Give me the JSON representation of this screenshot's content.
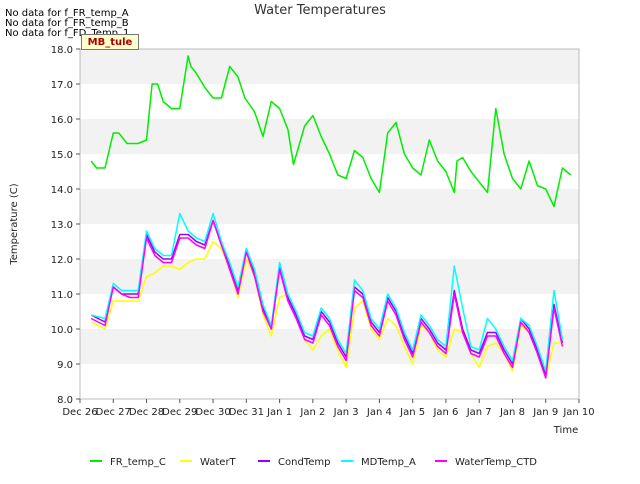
{
  "no_data_messages": [
    "No data for f_FR_temp_A",
    "No data for f_FR_temp_B",
    "No data for f_FD_Temp_1"
  ],
  "site_tag": "MB_tule",
  "chart_data": {
    "type": "line",
    "title": "Water Temperatures",
    "xlabel": "Time",
    "ylabel": "Temperature (C)",
    "xlim": [
      "2023-12-26",
      "2024-01-10"
    ],
    "ylim": [
      8.0,
      18.0
    ],
    "x_ticks": [
      "Dec 26",
      "Dec 27",
      "Dec 28",
      "Dec 29",
      "Dec 30",
      "Dec 31",
      "Jan 1",
      "Jan 2",
      "Jan 3",
      "Jan 4",
      "Jan 5",
      "Jan 6",
      "Jan 7",
      "Jan 8",
      "Jan 9",
      "Jan 10"
    ],
    "y_ticks": [
      "8.0",
      "9.0",
      "10.0",
      "11.0",
      "12.0",
      "13.0",
      "14.0",
      "15.0",
      "16.0",
      "17.0",
      "18.0"
    ],
    "grid": "horizontal bands",
    "legend_position": "bottom",
    "series": [
      {
        "name": "FR_temp_C",
        "color": "#00ee00",
        "x": [
          "2023-12-26 08:00",
          "2023-12-26 12:00",
          "2023-12-26 18:00",
          "2023-12-27 00:00",
          "2023-12-27 04:00",
          "2023-12-27 10:00",
          "2023-12-27 18:00",
          "2023-12-28 00:00",
          "2023-12-28 04:00",
          "2023-12-28 08:00",
          "2023-12-28 12:00",
          "2023-12-28 18:00",
          "2023-12-29 00:00",
          "2023-12-29 06:00",
          "2023-12-29 08:00",
          "2023-12-29 12:00",
          "2023-12-29 18:00",
          "2023-12-30 00:00",
          "2023-12-30 06:00",
          "2023-12-30 12:00",
          "2023-12-30 18:00",
          "2023-12-30 23:00",
          "2023-12-31 06:00",
          "2023-12-31 12:00",
          "2023-12-31 18:00",
          "2024-01-01 00:00",
          "2024-01-01 06:00",
          "2024-01-01 10:00",
          "2024-01-01 18:00",
          "2024-01-02 00:00",
          "2024-01-02 06:00",
          "2024-01-02 12:00",
          "2024-01-02 18:00",
          "2024-01-03 00:00",
          "2024-01-03 06:00",
          "2024-01-03 12:00",
          "2024-01-03 18:00",
          "2024-01-04 00:00",
          "2024-01-04 06:00",
          "2024-01-04 12:00",
          "2024-01-04 18:00",
          "2024-01-05 00:00",
          "2024-01-05 06:00",
          "2024-01-05 12:00",
          "2024-01-05 18:00",
          "2024-01-06 00:00",
          "2024-01-06 06:00",
          "2024-01-06 08:00",
          "2024-01-06 12:00",
          "2024-01-06 18:00",
          "2024-01-07 00:00",
          "2024-01-07 06:00",
          "2024-01-07 12:00",
          "2024-01-07 18:00",
          "2024-01-08 00:00",
          "2024-01-08 06:00",
          "2024-01-08 12:00",
          "2024-01-08 18:00",
          "2024-01-09 00:00",
          "2024-01-09 06:00",
          "2024-01-09 12:00",
          "2024-01-09 18:00"
        ],
        "y": [
          14.8,
          14.6,
          14.6,
          15.6,
          15.6,
          15.3,
          15.3,
          15.4,
          17.0,
          17.0,
          16.5,
          16.3,
          16.3,
          17.8,
          17.5,
          17.3,
          16.9,
          16.6,
          16.6,
          17.5,
          17.2,
          16.6,
          16.2,
          15.5,
          16.5,
          16.3,
          15.7,
          14.7,
          15.8,
          16.1,
          15.5,
          15.0,
          14.4,
          14.3,
          15.1,
          14.9,
          14.3,
          13.9,
          15.6,
          15.9,
          15.0,
          14.6,
          14.4,
          15.4,
          14.8,
          14.5,
          13.9,
          14.8,
          14.9,
          14.5,
          14.2,
          13.9,
          16.3,
          15.0,
          14.3,
          14.0,
          14.8,
          14.1,
          14.0,
          13.5,
          14.6,
          14.4
        ]
      },
      {
        "name": "WaterT",
        "color": "#ffff00",
        "x": [
          "2023-12-26 08:00",
          "2023-12-26 18:00",
          "2023-12-27 00:00",
          "2023-12-27 06:00",
          "2023-12-27 12:00",
          "2023-12-27 18:00",
          "2023-12-28 00:00",
          "2023-12-28 06:00",
          "2023-12-28 12:00",
          "2023-12-28 18:00",
          "2023-12-29 00:00",
          "2023-12-29 06:00",
          "2023-12-29 12:00",
          "2023-12-29 18:00",
          "2023-12-30 00:00",
          "2023-12-30 06:00",
          "2023-12-30 12:00",
          "2023-12-30 18:00",
          "2023-12-31 00:00",
          "2023-12-31 06:00",
          "2023-12-31 12:00",
          "2023-12-31 18:00",
          "2024-01-01 00:00",
          "2024-01-01 06:00",
          "2024-01-01 12:00",
          "2024-01-01 18:00",
          "2024-01-02 00:00",
          "2024-01-02 06:00",
          "2024-01-02 12:00",
          "2024-01-02 18:00",
          "2024-01-03 00:00",
          "2024-01-03 06:00",
          "2024-01-03 12:00",
          "2024-01-03 18:00",
          "2024-01-04 00:00",
          "2024-01-04 06:00",
          "2024-01-04 12:00",
          "2024-01-04 18:00",
          "2024-01-05 00:00",
          "2024-01-05 06:00",
          "2024-01-05 12:00",
          "2024-01-05 18:00",
          "2024-01-06 00:00",
          "2024-01-06 06:00",
          "2024-01-06 12:00",
          "2024-01-06 18:00",
          "2024-01-07 00:00",
          "2024-01-07 06:00",
          "2024-01-07 12:00",
          "2024-01-07 18:00",
          "2024-01-08 00:00",
          "2024-01-08 06:00",
          "2024-01-08 12:00",
          "2024-01-08 18:00",
          "2024-01-09 00:00",
          "2024-01-09 06:00",
          "2024-01-09 12:00"
        ],
        "y": [
          10.2,
          10.0,
          10.8,
          10.8,
          10.8,
          10.8,
          11.5,
          11.6,
          11.8,
          11.8,
          11.7,
          11.9,
          12.0,
          12.0,
          12.5,
          12.3,
          11.7,
          10.9,
          12.0,
          11.5,
          10.4,
          9.8,
          10.9,
          11.0,
          10.5,
          9.7,
          9.4,
          9.8,
          10.0,
          9.4,
          8.9,
          10.6,
          10.8,
          10.0,
          9.7,
          10.3,
          10.1,
          9.5,
          9.0,
          10.1,
          9.9,
          9.4,
          9.2,
          10.0,
          9.9,
          9.3,
          8.9,
          9.5,
          9.6,
          9.3,
          8.8,
          10.1,
          9.9,
          9.3,
          8.6,
          9.6,
          9.6
        ]
      },
      {
        "name": "CondTemp",
        "color": "#9900ff",
        "x": [
          "2023-12-26 08:00",
          "2023-12-26 18:00",
          "2023-12-27 00:00",
          "2023-12-27 06:00",
          "2023-12-27 12:00",
          "2023-12-27 18:00",
          "2023-12-28 00:00",
          "2023-12-28 06:00",
          "2023-12-28 12:00",
          "2023-12-28 18:00",
          "2023-12-29 00:00",
          "2023-12-29 06:00",
          "2023-12-29 12:00",
          "2023-12-29 18:00",
          "2023-12-30 00:00",
          "2023-12-30 06:00",
          "2023-12-30 12:00",
          "2023-12-30 18:00",
          "2023-12-31 00:00",
          "2023-12-31 06:00",
          "2023-12-31 12:00",
          "2023-12-31 18:00",
          "2024-01-01 00:00",
          "2024-01-01 06:00",
          "2024-01-01 12:00",
          "2024-01-01 18:00",
          "2024-01-02 00:00",
          "2024-01-02 06:00",
          "2024-01-02 12:00",
          "2024-01-02 18:00",
          "2024-01-03 00:00",
          "2024-01-03 06:00",
          "2024-01-03 12:00",
          "2024-01-03 18:00",
          "2024-01-04 00:00",
          "2024-01-04 06:00",
          "2024-01-04 12:00",
          "2024-01-04 18:00",
          "2024-01-05 00:00",
          "2024-01-05 06:00",
          "2024-01-05 12:00",
          "2024-01-05 18:00",
          "2024-01-06 00:00",
          "2024-01-06 06:00",
          "2024-01-06 12:00",
          "2024-01-06 18:00",
          "2024-01-07 00:00",
          "2024-01-07 06:00",
          "2024-01-07 12:00",
          "2024-01-07 18:00",
          "2024-01-08 00:00",
          "2024-01-08 06:00",
          "2024-01-08 12:00",
          "2024-01-08 18:00",
          "2024-01-09 00:00",
          "2024-01-09 06:00",
          "2024-01-09 12:00"
        ],
        "y": [
          10.4,
          10.2,
          11.2,
          11.0,
          11.0,
          11.0,
          12.7,
          12.2,
          12.0,
          12.0,
          12.7,
          12.7,
          12.5,
          12.4,
          13.1,
          12.4,
          11.8,
          11.1,
          12.3,
          11.6,
          10.6,
          10.0,
          11.8,
          10.9,
          10.4,
          9.8,
          9.7,
          10.5,
          10.2,
          9.6,
          9.2,
          11.2,
          11.0,
          10.2,
          9.9,
          10.9,
          10.5,
          9.8,
          9.3,
          10.3,
          10.0,
          9.6,
          9.4,
          11.1,
          10.0,
          9.4,
          9.3,
          9.9,
          9.9,
          9.4,
          9.0,
          10.3,
          10.0,
          9.4,
          8.7,
          10.7,
          9.6
        ]
      },
      {
        "name": "MDTemp_A",
        "color": "#00ffff",
        "x": [
          "2023-12-26 08:00",
          "2023-12-26 18:00",
          "2023-12-27 00:00",
          "2023-12-27 06:00",
          "2023-12-27 12:00",
          "2023-12-27 18:00",
          "2023-12-28 00:00",
          "2023-12-28 06:00",
          "2023-12-28 12:00",
          "2023-12-28 18:00",
          "2023-12-29 00:00",
          "2023-12-29 06:00",
          "2023-12-29 12:00",
          "2023-12-29 18:00",
          "2023-12-30 00:00",
          "2023-12-30 06:00",
          "2023-12-30 12:00",
          "2023-12-30 18:00",
          "2023-12-31 00:00",
          "2023-12-31 06:00",
          "2023-12-31 12:00",
          "2023-12-31 18:00",
          "2024-01-01 00:00",
          "2024-01-01 06:00",
          "2024-01-01 12:00",
          "2024-01-01 18:00",
          "2024-01-02 00:00",
          "2024-01-02 06:00",
          "2024-01-02 12:00",
          "2024-01-02 18:00",
          "2024-01-03 00:00",
          "2024-01-03 06:00",
          "2024-01-03 12:00",
          "2024-01-03 18:00",
          "2024-01-04 00:00",
          "2024-01-04 06:00",
          "2024-01-04 12:00",
          "2024-01-04 18:00",
          "2024-01-05 00:00",
          "2024-01-05 06:00",
          "2024-01-05 12:00",
          "2024-01-05 18:00",
          "2024-01-06 00:00",
          "2024-01-06 06:00",
          "2024-01-06 12:00",
          "2024-01-06 18:00",
          "2024-01-07 00:00",
          "2024-01-07 06:00",
          "2024-01-07 12:00",
          "2024-01-07 18:00",
          "2024-01-08 00:00",
          "2024-01-08 06:00",
          "2024-01-08 12:00",
          "2024-01-08 18:00",
          "2024-01-09 00:00",
          "2024-01-09 06:00",
          "2024-01-09 12:00"
        ],
        "y": [
          10.4,
          10.3,
          11.3,
          11.1,
          11.1,
          11.1,
          12.8,
          12.3,
          12.1,
          12.1,
          13.3,
          12.8,
          12.6,
          12.5,
          13.3,
          12.5,
          11.9,
          11.2,
          12.3,
          11.7,
          10.7,
          10.1,
          11.9,
          11.0,
          10.5,
          9.9,
          9.8,
          10.6,
          10.3,
          9.7,
          9.3,
          11.4,
          11.1,
          10.3,
          10.0,
          11.0,
          10.6,
          9.9,
          9.4,
          10.4,
          10.1,
          9.7,
          9.5,
          11.8,
          10.6,
          9.5,
          9.4,
          10.3,
          10.0,
          9.5,
          9.1,
          10.3,
          10.1,
          9.5,
          8.8,
          11.1,
          9.7
        ]
      },
      {
        "name": "WaterTemp_CTD",
        "color": "#ff00ff",
        "x": [
          "2023-12-26 08:00",
          "2023-12-26 18:00",
          "2023-12-27 00:00",
          "2023-12-27 06:00",
          "2023-12-27 12:00",
          "2023-12-27 18:00",
          "2023-12-28 00:00",
          "2023-12-28 06:00",
          "2023-12-28 12:00",
          "2023-12-28 18:00",
          "2023-12-29 00:00",
          "2023-12-29 06:00",
          "2023-12-29 12:00",
          "2023-12-29 18:00",
          "2023-12-30 00:00",
          "2023-12-30 06:00",
          "2023-12-30 12:00",
          "2023-12-30 18:00",
          "2023-12-31 00:00",
          "2023-12-31 06:00",
          "2023-12-31 12:00",
          "2023-12-31 18:00",
          "2024-01-01 00:00",
          "2024-01-01 06:00",
          "2024-01-01 12:00",
          "2024-01-01 18:00",
          "2024-01-02 00:00",
          "2024-01-02 06:00",
          "2024-01-02 12:00",
          "2024-01-02 18:00",
          "2024-01-03 00:00",
          "2024-01-03 06:00",
          "2024-01-03 12:00",
          "2024-01-03 18:00",
          "2024-01-04 00:00",
          "2024-01-04 06:00",
          "2024-01-04 12:00",
          "2024-01-04 18:00",
          "2024-01-05 00:00",
          "2024-01-05 06:00",
          "2024-01-05 12:00",
          "2024-01-05 18:00",
          "2024-01-06 00:00",
          "2024-01-06 06:00",
          "2024-01-06 12:00",
          "2024-01-06 18:00",
          "2024-01-07 00:00",
          "2024-01-07 06:00",
          "2024-01-07 12:00",
          "2024-01-07 18:00",
          "2024-01-08 00:00",
          "2024-01-08 06:00",
          "2024-01-08 12:00",
          "2024-01-08 18:00",
          "2024-01-09 00:00",
          "2024-01-09 06:00",
          "2024-01-09 12:00"
        ],
        "y": [
          10.3,
          10.1,
          11.2,
          11.0,
          10.9,
          10.9,
          12.6,
          12.1,
          11.9,
          11.9,
          12.6,
          12.6,
          12.4,
          12.3,
          13.1,
          12.4,
          11.7,
          11.0,
          12.2,
          11.5,
          10.5,
          10.0,
          11.7,
          10.8,
          10.3,
          9.7,
          9.6,
          10.4,
          10.1,
          9.5,
          9.1,
          11.1,
          10.9,
          10.1,
          9.8,
          10.8,
          10.4,
          9.7,
          9.2,
          10.2,
          9.9,
          9.5,
          9.3,
          11.0,
          9.9,
          9.3,
          9.2,
          9.8,
          9.8,
          9.3,
          8.9,
          10.2,
          9.9,
          9.3,
          8.6,
          10.6,
          9.5
        ]
      }
    ]
  }
}
